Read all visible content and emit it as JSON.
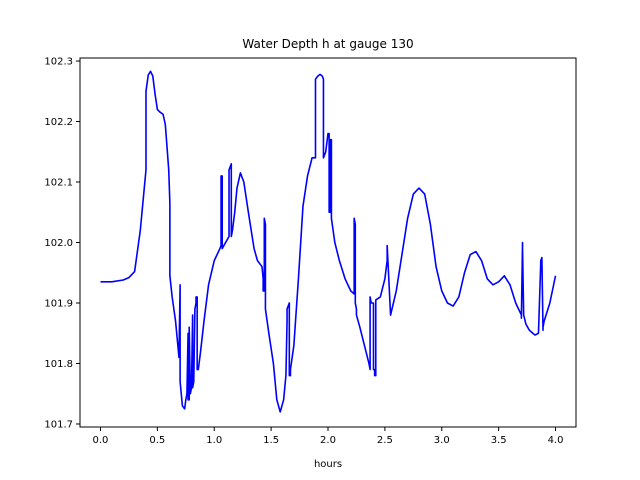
{
  "chart_data": {
    "type": "line",
    "title": "Water Depth h at gauge 130",
    "xlabel": "hours",
    "ylabel": "",
    "xlim": [
      -0.18,
      4.18
    ],
    "ylim": [
      101.695,
      102.305
    ],
    "xticks": [
      0.0,
      0.5,
      1.0,
      1.5,
      2.0,
      2.5,
      3.0,
      3.5,
      4.0
    ],
    "xtick_labels": [
      "0.0",
      "0.5",
      "1.0",
      "1.5",
      "2.0",
      "2.5",
      "3.0",
      "3.5",
      "4.0"
    ],
    "yticks": [
      101.7,
      101.8,
      101.9,
      102.0,
      102.1,
      102.2,
      102.3
    ],
    "ytick_labels": [
      "101.7",
      "101.8",
      "101.9",
      "102.0",
      "102.1",
      "102.2",
      "102.3"
    ],
    "grid": false,
    "colors": {
      "line": "#0000ff",
      "axes": "#000000",
      "background": "#ffffff"
    },
    "series": [
      {
        "x": [
          0.0,
          0.1,
          0.2,
          0.25,
          0.3,
          0.35,
          0.4,
          0.4,
          0.42,
          0.44,
          0.46,
          0.48,
          0.5,
          0.52,
          0.55,
          0.57,
          0.6,
          0.61,
          0.61,
          0.63,
          0.66,
          0.69,
          0.7,
          0.7,
          0.71,
          0.72,
          0.74,
          0.75,
          0.76,
          0.77,
          0.77,
          0.78,
          0.78,
          0.79,
          0.8,
          0.81,
          0.81,
          0.82,
          0.83,
          0.84,
          0.84,
          0.85,
          0.85,
          0.86,
          0.88,
          0.91,
          0.95,
          1.0,
          1.05,
          1.06,
          1.06,
          1.07,
          1.07,
          1.1,
          1.13,
          1.13,
          1.15,
          1.15,
          1.16,
          1.18,
          1.2,
          1.23,
          1.26,
          1.3,
          1.35,
          1.38,
          1.42,
          1.43,
          1.43,
          1.44,
          1.44,
          1.45,
          1.45,
          1.48,
          1.52,
          1.55,
          1.58,
          1.61,
          1.63,
          1.64,
          1.64,
          1.66,
          1.66,
          1.67,
          1.67,
          1.7,
          1.74,
          1.78,
          1.82,
          1.86,
          1.89,
          1.89,
          1.91,
          1.93,
          1.95,
          1.96,
          1.96,
          1.98,
          2.0,
          2.01,
          2.01,
          2.02,
          2.02,
          2.03,
          2.03,
          2.06,
          2.1,
          2.15,
          2.2,
          2.23,
          2.23,
          2.24,
          2.24,
          2.25,
          2.25,
          2.28,
          2.32,
          2.36,
          2.37,
          2.37,
          2.38,
          2.4,
          2.4,
          2.41,
          2.41,
          2.42,
          2.42,
          2.46,
          2.5,
          2.52,
          2.52,
          2.55,
          2.6,
          2.65,
          2.7,
          2.75,
          2.8,
          2.85,
          2.9,
          2.95,
          3.0,
          3.05,
          3.1,
          3.15,
          3.2,
          3.25,
          3.3,
          3.35,
          3.4,
          3.45,
          3.5,
          3.55,
          3.6,
          3.65,
          3.7,
          3.7,
          3.71,
          3.71,
          3.72,
          3.74,
          3.77,
          3.8,
          3.82,
          3.85,
          3.87,
          3.87,
          3.88,
          3.89,
          3.89,
          3.9,
          3.95,
          4.0
        ],
        "y": [
          101.935,
          101.935,
          101.938,
          101.942,
          101.952,
          102.02,
          102.12,
          102.25,
          102.277,
          102.283,
          102.275,
          102.245,
          102.22,
          102.216,
          102.212,
          102.195,
          102.12,
          102.065,
          101.945,
          101.91,
          101.87,
          101.81,
          101.93,
          101.77,
          101.75,
          101.73,
          101.725,
          101.74,
          101.75,
          101.85,
          101.74,
          101.74,
          101.86,
          101.75,
          101.76,
          101.88,
          101.76,
          101.77,
          101.89,
          101.9,
          101.91,
          101.91,
          101.79,
          101.79,
          101.82,
          101.87,
          101.93,
          101.97,
          101.99,
          101.995,
          102.11,
          102.11,
          101.99,
          102.0,
          102.01,
          102.12,
          102.13,
          102.01,
          102.02,
          102.05,
          102.09,
          102.115,
          102.1,
          102.05,
          101.99,
          101.97,
          101.96,
          101.94,
          101.92,
          101.92,
          102.04,
          102.03,
          101.89,
          101.85,
          101.8,
          101.74,
          101.72,
          101.74,
          101.78,
          101.87,
          101.89,
          101.9,
          101.78,
          101.78,
          101.79,
          101.83,
          101.94,
          102.06,
          102.11,
          102.14,
          102.14,
          102.27,
          102.275,
          102.278,
          102.275,
          102.27,
          102.14,
          102.15,
          102.18,
          102.18,
          102.05,
          102.05,
          102.17,
          102.17,
          102.04,
          102.0,
          101.97,
          101.94,
          101.92,
          101.915,
          102.04,
          102.03,
          101.9,
          101.89,
          101.88,
          101.86,
          101.83,
          101.8,
          101.79,
          101.91,
          101.9,
          101.9,
          101.79,
          101.79,
          101.78,
          101.78,
          101.905,
          101.91,
          101.94,
          101.97,
          101.995,
          101.88,
          101.92,
          101.98,
          102.04,
          102.08,
          102.09,
          102.08,
          102.03,
          101.96,
          101.92,
          101.9,
          101.895,
          101.91,
          101.95,
          101.98,
          101.985,
          101.97,
          101.94,
          101.93,
          101.935,
          101.945,
          101.93,
          101.9,
          101.88,
          101.875,
          102.0,
          101.99,
          101.88,
          101.865,
          101.855,
          101.85,
          101.847,
          101.85,
          101.965,
          101.97,
          101.975,
          101.855,
          101.86,
          101.87,
          101.9,
          101.945
        ]
      }
    ]
  }
}
